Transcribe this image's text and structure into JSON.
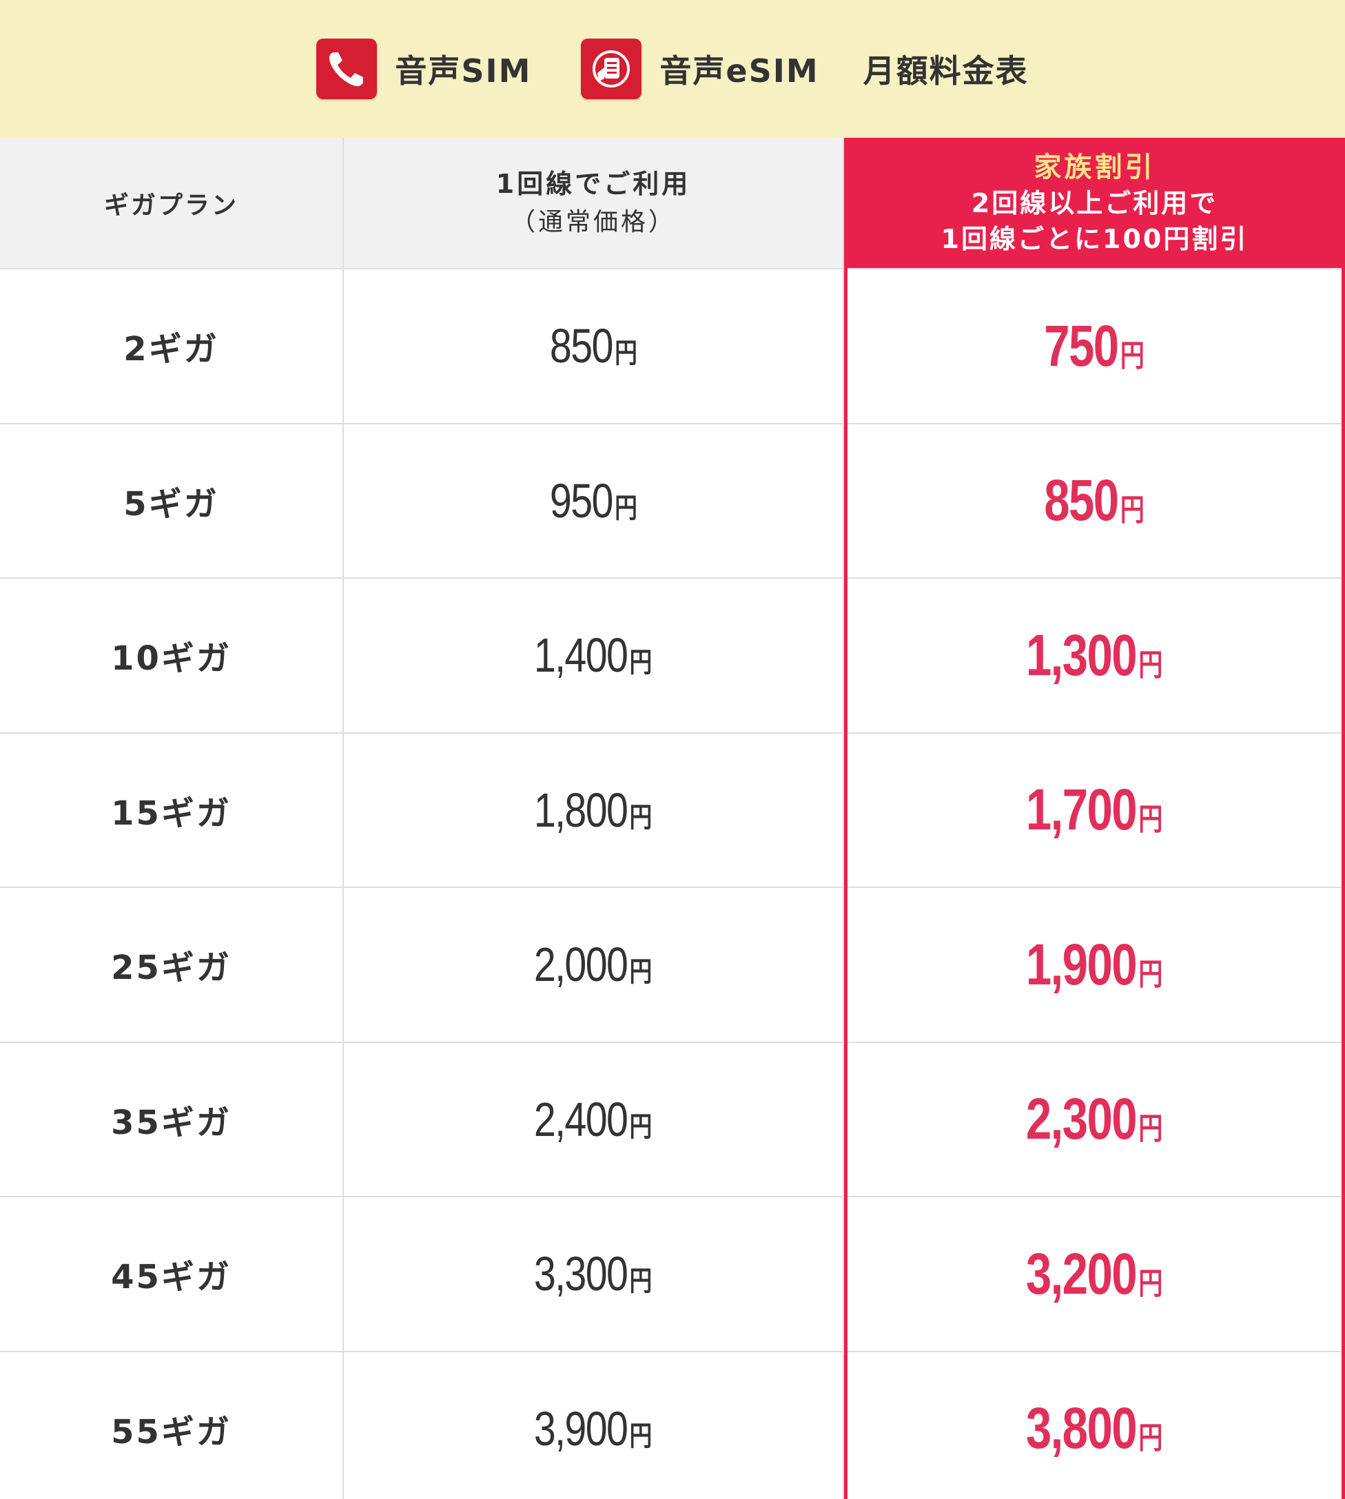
{
  "header": {
    "voice_sim_label": "音声SIM",
    "voice_esim_label": "音声eSIM",
    "title": "月額料金表",
    "icon_color": "#d51e31"
  },
  "table": {
    "columns": {
      "plan": "ギガプラン",
      "normal_line1": "1回線でご利用",
      "normal_line2": "（通常価格）",
      "family_line1": "家族割引",
      "family_line2": "2回線以上ご利用で",
      "family_line3": "1回線ごとに100円割引"
    },
    "currency_unit": "円",
    "accent_color": "#e8214c",
    "rows": [
      {
        "plan": "2ギガ",
        "normal": "850",
        "family": "750"
      },
      {
        "plan": "5ギガ",
        "normal": "950",
        "family": "850"
      },
      {
        "plan": "10ギガ",
        "normal": "1,400",
        "family": "1,300"
      },
      {
        "plan": "15ギガ",
        "normal": "1,800",
        "family": "1,700"
      },
      {
        "plan": "25ギガ",
        "normal": "2,000",
        "family": "1,900"
      },
      {
        "plan": "35ギガ",
        "normal": "2,400",
        "family": "2,300"
      },
      {
        "plan": "45ギガ",
        "normal": "3,300",
        "family": "3,200"
      },
      {
        "plan": "55ギガ",
        "normal": "3,900",
        "family": "3,800"
      }
    ]
  }
}
